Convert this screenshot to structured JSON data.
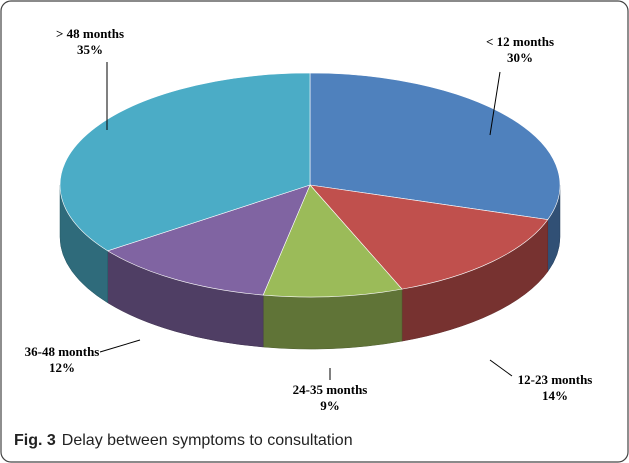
{
  "chart_data": {
    "type": "pie",
    "caption_label": "Fig. 3",
    "caption": "Delay between symptoms to consultation",
    "categories": [
      "< 12 months",
      "12-23 months",
      "24-35 months",
      "36-48 months",
      "> 48 months"
    ],
    "values": [
      30,
      14,
      9,
      12,
      35
    ],
    "value_labels": [
      "30%",
      "14%",
      "9%",
      "12%",
      "35%"
    ],
    "colors": [
      "#4f81bd",
      "#c0504d",
      "#9bbb59",
      "#8064a2",
      "#4bacc6"
    ]
  }
}
